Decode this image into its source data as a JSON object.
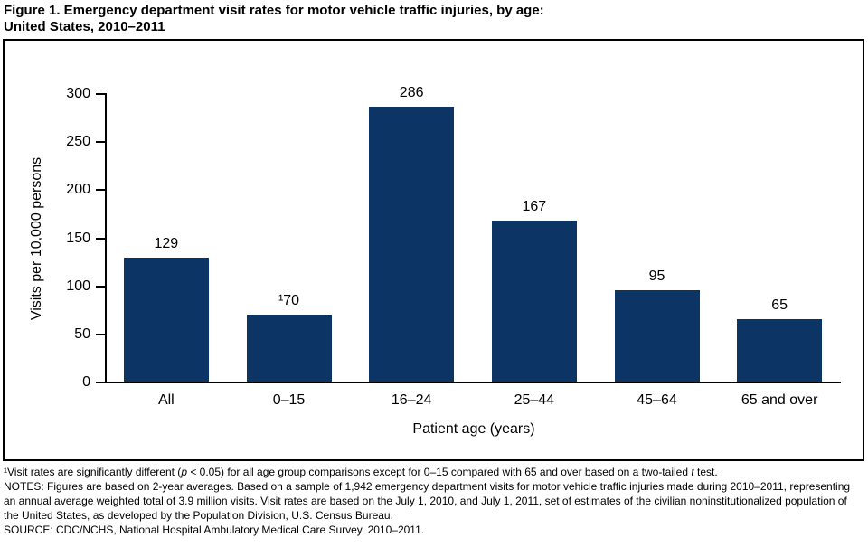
{
  "figure": {
    "title_line1": "Figure 1. Emergency department visit rates for motor vehicle traffic injuries, by age:",
    "title_line2": "United States, 2010–2011"
  },
  "chart_data": {
    "type": "bar",
    "title": "Figure 1. Emergency department visit rates for motor vehicle traffic injuries, by age: United States, 2010–2011",
    "categories": [
      "All",
      "0–15",
      "16–24",
      "25–44",
      "45–64",
      "65 and over"
    ],
    "values": [
      129,
      70,
      286,
      167,
      95,
      65
    ],
    "bar_labels": [
      "129",
      "¹70",
      "286",
      "167",
      "95",
      "65"
    ],
    "xlabel": "Patient age (years)",
    "ylabel": "Visits per 10,000 persons",
    "ylim": [
      0,
      300
    ],
    "yticks": [
      0,
      50,
      100,
      150,
      200,
      250,
      300
    ],
    "grid": false,
    "legend_position": "none",
    "bar_color": "#0C3566",
    "axis_color": "#000000"
  },
  "footnotes": {
    "footnote1_parts": [
      {
        "text": "¹Visit rates are significantly different (",
        "italic": false
      },
      {
        "text": "p",
        "italic": true
      },
      {
        "text": " < 0.05) for all age group comparisons except for 0–15 compared with 65 and over based on a two-tailed ",
        "italic": false
      },
      {
        "text": "t",
        "italic": true
      },
      {
        "text": " test.",
        "italic": false
      }
    ],
    "notes": "NOTES: Figures are based on 2-year averages. Based on a sample of 1,942 emergency department visits for motor vehicle traffic injuries made during 2010–2011, representing an annual average weighted total of 3.9 million visits. Visit rates are based on the July 1, 2010, and July 1, 2011, set of estimates of the civilian noninstitutionalized population of the United States, as developed by the Population Division, U.S. Census Bureau.",
    "source": "SOURCE: CDC/NCHS, National Hospital Ambulatory Medical Care Survey, 2010–2011."
  }
}
